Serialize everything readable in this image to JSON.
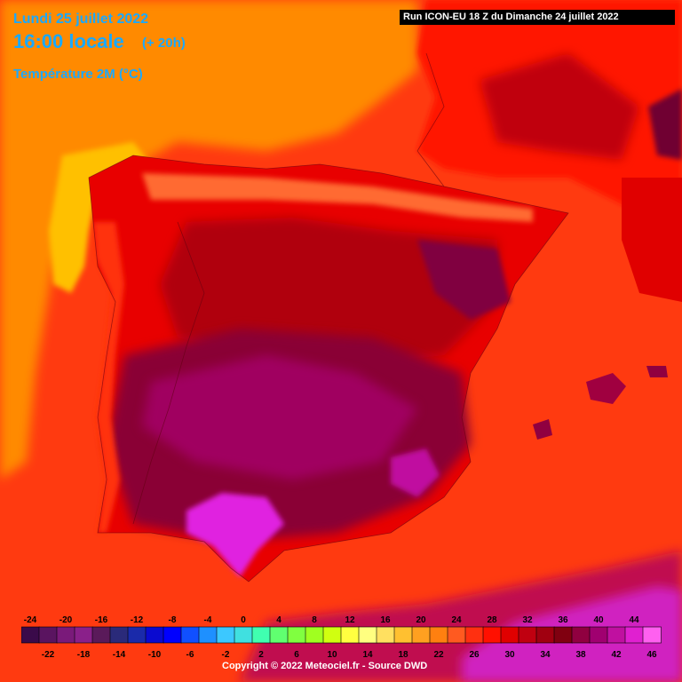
{
  "header": {
    "date": "Lundi 25 juillet 2022",
    "time_local": "16:00 locale",
    "offset": "(+ 20h)",
    "variable": "Température 2M (°C)",
    "run": "Run ICON-EU 18 Z du Dimanche 24 juillet 2022"
  },
  "footer": {
    "copyright": "Copyright © 2022 Meteociel.fr - Source DWD"
  },
  "legend": {
    "values": [
      -24,
      -22,
      -20,
      -18,
      -16,
      -14,
      -12,
      -10,
      -8,
      -6,
      -4,
      -2,
      0,
      2,
      4,
      6,
      8,
      10,
      12,
      14,
      16,
      18,
      20,
      22,
      24,
      26,
      28,
      30,
      32,
      34,
      36,
      38,
      40,
      42,
      44,
      46
    ],
    "colors": [
      "#3a0a4a",
      "#5a1460",
      "#7a1a7a",
      "#8a208a",
      "#5a1a5a",
      "#2a2a7a",
      "#1a2aaa",
      "#0a0ad0",
      "#0000ff",
      "#1050ff",
      "#1e90ff",
      "#3cc8ff",
      "#40e0e0",
      "#40ffb0",
      "#60ff70",
      "#80ff40",
      "#a0ff20",
      "#d0ff10",
      "#ffff40",
      "#ffff80",
      "#ffe060",
      "#ffc030",
      "#ffa020",
      "#ff8010",
      "#ff5a20",
      "#ff3010",
      "#ff1000",
      "#e00000",
      "#c00010",
      "#a00010",
      "#800010",
      "#900040",
      "#a00070",
      "#c010a0",
      "#e020d0",
      "#ff60f0"
    ]
  },
  "map": {
    "region": "Iberian Peninsula",
    "colors": {
      "sea_north_orange": "#ff8a00",
      "sea_west_yellow": "#ffc000",
      "sea_red": "#ff2a10",
      "land_red": "#e00000",
      "land_dark_red": "#a00010",
      "land_maroon": "#800020",
      "land_purple": "#900048",
      "land_magenta": "#e020e0"
    }
  }
}
